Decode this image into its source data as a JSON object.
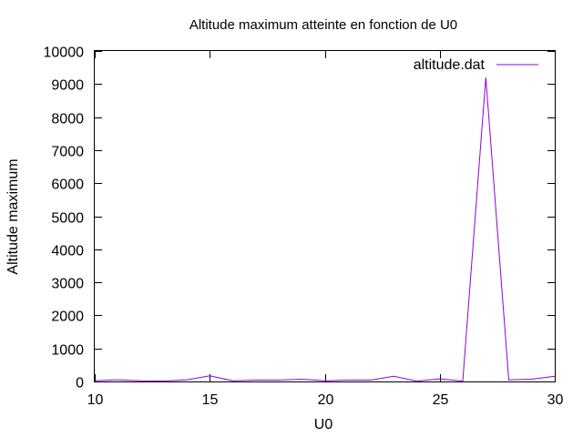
{
  "chart_data": {
    "type": "line",
    "title": "Altitude maximum atteinte en fonction de U0",
    "xlabel": "U0",
    "ylabel": "Altitude maximum",
    "xlim": [
      10,
      30
    ],
    "ylim": [
      0,
      10000
    ],
    "x_ticks": [
      "10",
      "15",
      "20",
      "25",
      "30"
    ],
    "y_ticks": [
      "0",
      "1000",
      "2000",
      "3000",
      "4000",
      "5000",
      "6000",
      "7000",
      "8000",
      "9000",
      "10000"
    ],
    "legend_position": "top-right",
    "grid": false,
    "series": [
      {
        "name": "altitude.dat",
        "color": "#9400d3",
        "x": [
          10,
          11,
          12,
          13,
          14,
          15,
          16,
          17,
          18,
          19,
          20,
          21,
          22,
          23,
          24,
          25,
          26,
          27,
          28,
          29,
          30
        ],
        "y": [
          20,
          50,
          20,
          15,
          50,
          170,
          20,
          40,
          40,
          70,
          20,
          40,
          40,
          160,
          10,
          80,
          10,
          9200,
          50,
          70,
          160
        ]
      }
    ]
  }
}
